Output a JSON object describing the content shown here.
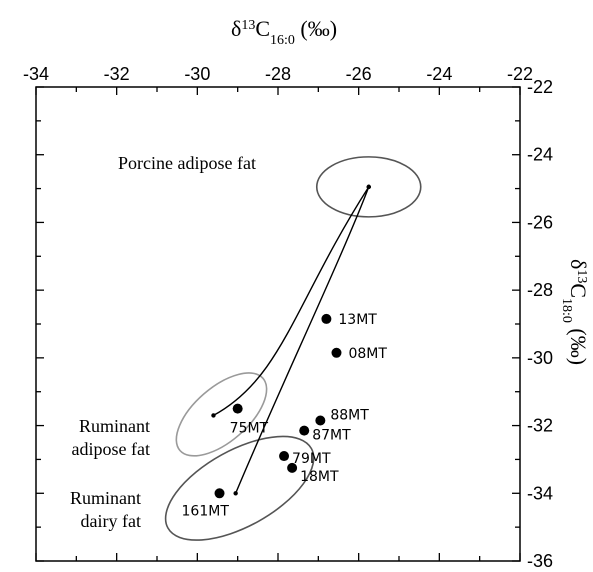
{
  "chart_data": {
    "type": "scatter",
    "xlabel": {
      "base": "δ",
      "sup": "13",
      "main": "C",
      "sub": "16:0",
      "unit": " (‰)"
    },
    "ylabel": {
      "base": "δ",
      "sup": "13",
      "main": "C",
      "sub": "18:0",
      "unit": " (‰)"
    },
    "xlim": [
      -34,
      -22
    ],
    "ylim": [
      -36,
      -22
    ],
    "x_ticks": [
      -34,
      -32,
      -30,
      -28,
      -26,
      -24,
      -22
    ],
    "y_ticks": [
      -22,
      -24,
      -26,
      -28,
      -30,
      -32,
      -34,
      -36
    ],
    "x_tick_labels": [
      "-34",
      "-32",
      "-30",
      "-28",
      "-26",
      "-24",
      "-22"
    ],
    "y_tick_labels": [
      "-22",
      "-24",
      "-26",
      "-28",
      "-30",
      "-32",
      "-34",
      "-36"
    ],
    "x_axis_position": "top",
    "y_axis_position": "right",
    "grid": false,
    "points": [
      {
        "label": "13MT",
        "x": -26.8,
        "y": -28.85
      },
      {
        "label": "08MT",
        "x": -26.55,
        "y": -29.85
      },
      {
        "label": "88MT",
        "x": -26.95,
        "y": -31.85
      },
      {
        "label": "87MT",
        "x": -27.35,
        "y": -32.15
      },
      {
        "label": "79MT",
        "x": -27.85,
        "y": -32.9
      },
      {
        "label": "18MT",
        "x": -27.65,
        "y": -33.25
      },
      {
        "label": "75MT",
        "x": -29.0,
        "y": -31.5
      },
      {
        "label": "161MT",
        "x": -29.45,
        "y": -34.0
      }
    ],
    "regions": [
      {
        "name": "Porcine adipose fat",
        "label_lines": [
          "Porcine adipose fat"
        ],
        "center": [
          -25.75,
          -24.95
        ],
        "color": "#555555"
      },
      {
        "name": "Ruminant adipose fat",
        "label_lines": [
          "Ruminant",
          "adipose fat"
        ],
        "center": [
          -29.6,
          -31.7
        ],
        "color": "#9a9a9a"
      },
      {
        "name": "Ruminant dairy fat",
        "label_lines": [
          "Ruminant",
          "dairy fat"
        ],
        "center": [
          -29.05,
          -34.0
        ],
        "color": "#555555"
      }
    ],
    "mixing_lines": [
      {
        "from": [
          -25.75,
          -24.95
        ],
        "to": [
          -29.6,
          -31.7
        ],
        "shape": "curve"
      },
      {
        "from": [
          -25.75,
          -24.95
        ],
        "to": [
          -29.05,
          -34.0
        ],
        "shape": "curve"
      }
    ]
  }
}
